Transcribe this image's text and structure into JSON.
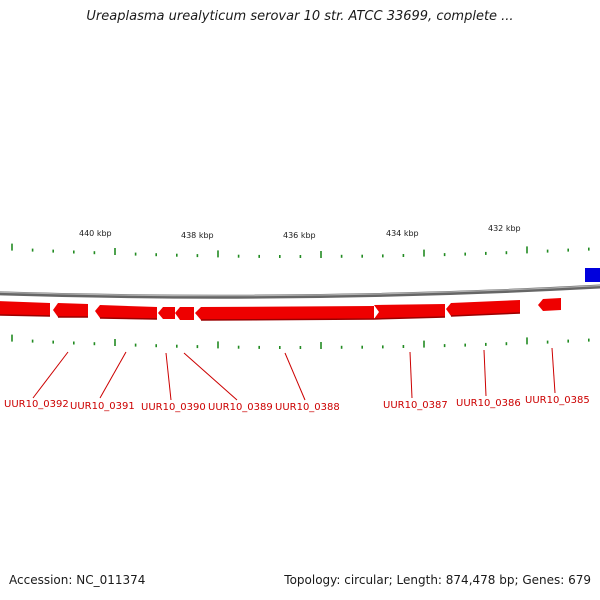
{
  "title": "Ureaplasma urealyticum serovar 10 str. ATCC 33699, complete ...",
  "accession": "Accession: NC_011374",
  "summary": "Topology: circular; Length: 874,478 bp; Genes: 679",
  "colors": {
    "backbone": "#808080",
    "gene_forward": "#ee0000",
    "gene_reverse": "#0000dd",
    "tick": "#228b22",
    "label": "#cc0000",
    "text": "#1a1a1a"
  },
  "scale_labels": [
    {
      "text": "440 kbp",
      "kbp": 440
    },
    {
      "text": "438 kbp",
      "kbp": 438
    },
    {
      "text": "436 kbp",
      "kbp": 436
    },
    {
      "text": "434 kbp",
      "kbp": 434
    },
    {
      "text": "432 kbp",
      "kbp": 432
    }
  ],
  "genes": [
    {
      "name": "UUR10_0392"
    },
    {
      "name": "UUR10_0391"
    },
    {
      "name": "UUR10_0390"
    },
    {
      "name": "UUR10_0389"
    },
    {
      "name": "UUR10_0388"
    },
    {
      "name": "UUR10_0387"
    },
    {
      "name": "UUR10_0386"
    },
    {
      "name": "UUR10_0385"
    }
  ]
}
